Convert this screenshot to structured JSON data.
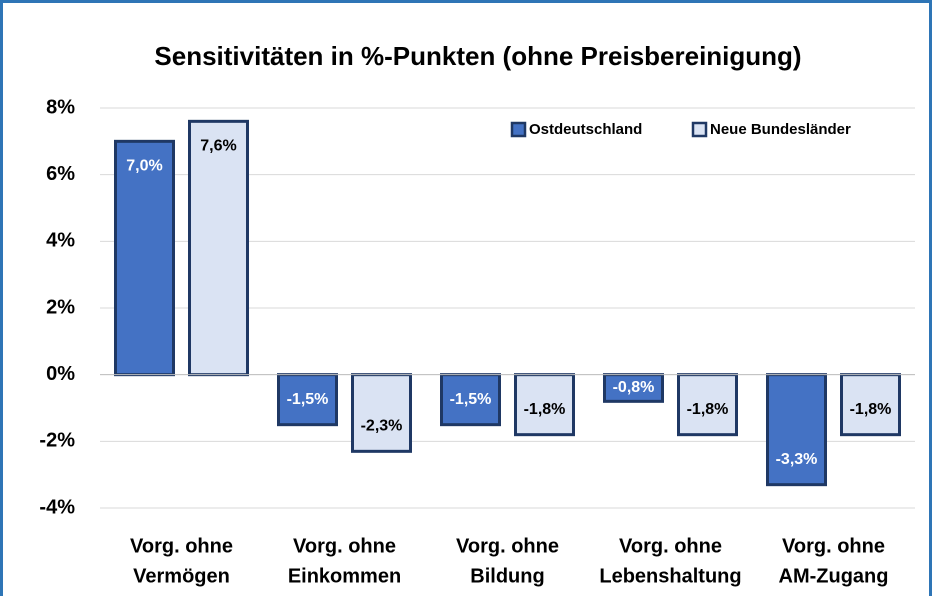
{
  "chart_data": {
    "type": "bar",
    "title": "Sensitivitäten in %-Punkten (ohne Preisbereinigung)",
    "categories": [
      [
        "Vorg. ohne",
        "Vermögen"
      ],
      [
        "Vorg. ohne",
        "Einkommen"
      ],
      [
        "Vorg. ohne",
        "Bildung"
      ],
      [
        "Vorg. ohne",
        "Lebenshaltung"
      ],
      [
        "Vorg. ohne",
        "AM-Zugang"
      ]
    ],
    "series": [
      {
        "name": "Ostdeutschland",
        "color": "#4472c4",
        "values": [
          7.0,
          -1.5,
          -1.5,
          -0.8,
          -3.3
        ],
        "value_labels": [
          "7,0%",
          "-1,5%",
          "-1,5%",
          "-0,8%",
          "-3,3%"
        ]
      },
      {
        "name": "Neue Bundesländer",
        "color": "#dae3f3",
        "values": [
          7.6,
          -2.3,
          -1.8,
          -1.8,
          -1.8
        ],
        "value_labels": [
          "7,6%",
          "-2,3%",
          "-1,8%",
          "-1,8%",
          "-1,8%"
        ]
      }
    ],
    "ylim": [
      -4,
      8
    ],
    "yticks": [
      {
        "value": -4,
        "label": "-4%"
      },
      {
        "value": -2,
        "label": "-2%"
      },
      {
        "value": 0,
        "label": "0%"
      },
      {
        "value": 2,
        "label": "2%"
      },
      {
        "value": 4,
        "label": "4%"
      },
      {
        "value": 6,
        "label": "6%"
      },
      {
        "value": 8,
        "label": "8%"
      }
    ],
    "grid": true,
    "legend": "top-right"
  }
}
